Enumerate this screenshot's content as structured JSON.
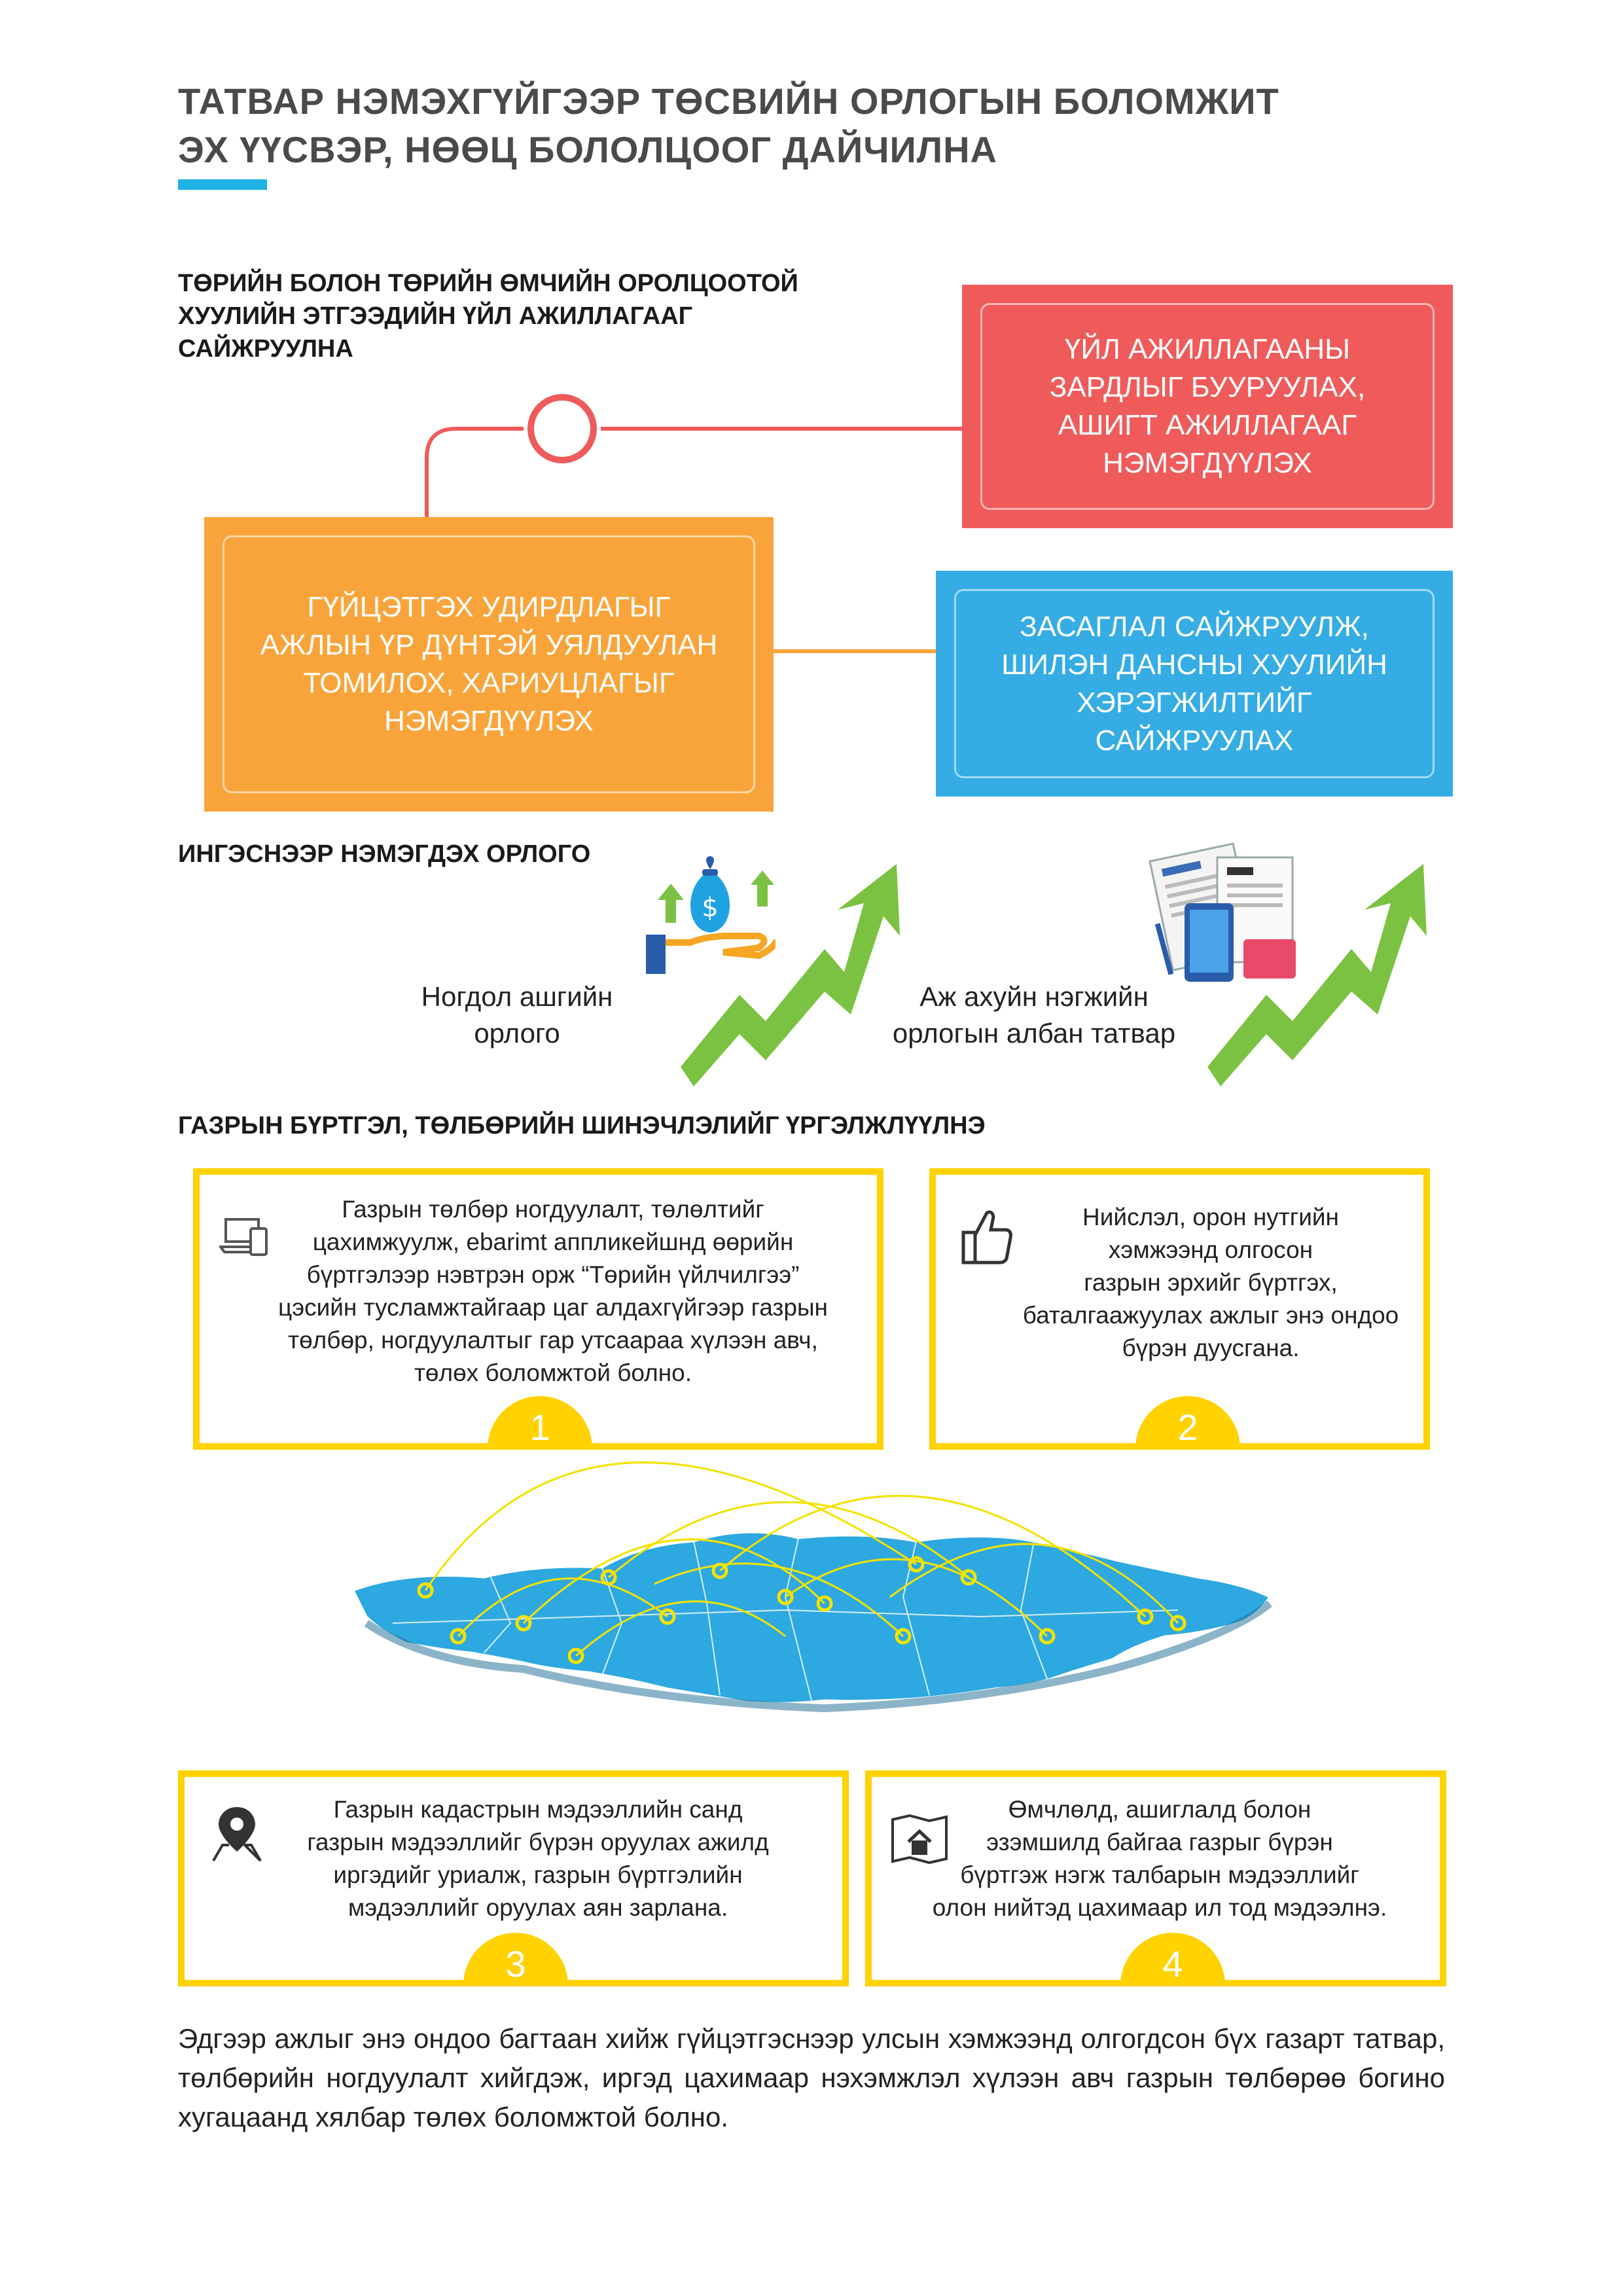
{
  "title": {
    "line1": "ТАТВАР НЭМЭХГҮЙГЭЭР ТӨСВИЙН ОРЛОГЫН БОЛОМЖИТ",
    "line2": "ЭХ ҮҮСВЭР, НӨӨЦ БОЛОЛЦООГ ДАЙЧИЛНА"
  },
  "section1": {
    "heading": [
      "ТӨРИЙН БОЛОН ТӨРИЙН ӨМЧИЙН ОРОЛЦООТОЙ",
      "ХУУЛИЙН ЭТГЭЭДИЙН ҮЙЛ АЖИЛЛАГААГ",
      "САЙЖРУУЛНА"
    ],
    "red_box": [
      "ҮЙЛ АЖИЛЛАГААНЫ",
      "ЗАРДЛЫГ БУУРУУЛАХ,",
      "АШИГТ АЖИЛЛАГААГ",
      "НЭМЭГДҮҮЛЭХ"
    ],
    "orange_box": [
      "ГҮЙЦЭТГЭХ УДИРДЛАГЫГ",
      "АЖЛЫН ҮР ДҮНТЭЙ УЯЛДУУЛАН",
      "ТОМИЛОХ, ХАРИУЦЛАГЫГ",
      "НЭМЭГДҮҮЛЭХ"
    ],
    "blue_box": [
      "ЗАСАГЛАЛ САЙЖРУУЛЖ,",
      "ШИЛЭН ДАНСНЫ ХУУЛИЙН",
      "ХЭРЭГЖИЛТИЙГ",
      "САЙЖРУУЛАХ"
    ],
    "colors": {
      "red": "#ef5b5b",
      "orange": "#f9a43a",
      "blue": "#35ace4",
      "connector": "#ef5b5b"
    }
  },
  "income": {
    "heading": "ИНГЭСНЭЭР НЭМЭГДЭХ ОРЛОГО",
    "item1": [
      "Ногдол ашгийн",
      "орлого"
    ],
    "item2": [
      "Аж ахуйн нэгжийн",
      "орлогын албан татвар"
    ],
    "icons": [
      "money-bag-hand-icon",
      "growth-arrow-icon",
      "documents-tablet-icon",
      "growth-arrow-icon"
    ]
  },
  "section2": {
    "heading": "ГАЗРЫН БҮРТГЭЛ, ТӨЛБӨРИЙН ШИНЭЧЛЭЛИЙГ ҮРГЭЛЖЛҮҮЛНЭ",
    "accent_color": "#ffd200",
    "cards": [
      {
        "number": "1",
        "icon": "laptop-phone-icon",
        "lines": [
          "Газрын төлбөр ногдуулалт, төлөлтийг",
          "цахимжуулж, ebarimt аппликейшнд өөрийн",
          "бүртгэлээр нэвтрэн орж “Төрийн үйлчилгээ”",
          "цэсийн тусламжтайгаар цаг алдахгүйгээр газрын",
          "төлбөр, ногдуулалтыг гар утсаараа хүлээн авч,",
          "төлөх боломжтой болно."
        ]
      },
      {
        "number": "2",
        "icon": "thumbs-up-icon",
        "lines": [
          "Нийслэл, орон нутгийн",
          "хэмжээнд олгосон",
          "газрын эрхийг бүртгэх,",
          "баталгаажуулах ажлыг энэ ондоо",
          "бүрэн дуусгана."
        ]
      },
      {
        "number": "3",
        "icon": "map-pin-icon",
        "lines": [
          "Газрын кадастрын мэдээллийн санд",
          "газрын мэдээллийг бүрэн оруулах ажилд",
          "иргэдийг уриалж, газрын бүртгэлийн",
          "мэдээллийг оруулах аян зарлана."
        ]
      },
      {
        "number": "4",
        "icon": "house-map-icon",
        "lines": [
          "Өмчлөлд, ашиглалд болон",
          "эзэмшилд байгаа газрыг бүрэн",
          "бүртгэж нэгж талбарын мэдээллийг",
          "олон нийтэд цахимаар ил тод мэдээлнэ."
        ]
      }
    ],
    "map_icon": "mongolia-map-icon"
  },
  "footer": "Эдгээр ажлыг энэ ондоо багтаан хийж гүйцэтгэснээр улсын хэмжээнд олгогдсон бүх газарт татвар, төлбөрийн ногдуулалт хийгдэж, иргэд цахимаар нэхэмжлэл хүлээн авч газрын төлбөрөө богино хугацаанд хялбар төлөх боломжтой болно."
}
